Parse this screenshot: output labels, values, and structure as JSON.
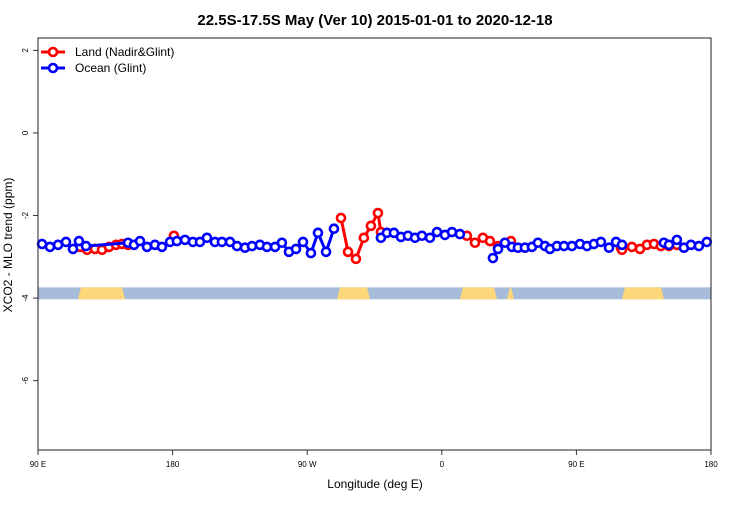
{
  "chart_data": {
    "type": "line",
    "title": "22.5S-17.5S May (Ver 10)   2015-01-01 to 2020-12-18",
    "xlabel": "Longitude (deg E)",
    "ylabel": "XCO2 - MLO trend (ppm)",
    "xlim": [
      90,
      540
    ],
    "ylim": [
      -7.68,
      2.3
    ],
    "x_ticks": [
      {
        "value": 90,
        "label": "90 E"
      },
      {
        "value": 180,
        "label": "180"
      },
      {
        "value": 270,
        "label": "90 W"
      },
      {
        "value": 360,
        "label": "0"
      },
      {
        "value": 450,
        "label": "90 E"
      },
      {
        "value": 540,
        "label": "180"
      }
    ],
    "y_ticks": [
      {
        "value": 2,
        "label": "2"
      },
      {
        "value": 0,
        "label": "0"
      },
      {
        "value": -2,
        "label": "-2"
      },
      {
        "value": -4,
        "label": "-4"
      },
      {
        "value": -6,
        "label": "-6"
      }
    ],
    "grid": false,
    "legend_position": "top-left",
    "series": [
      {
        "name": "Land (Nadir&Glint)",
        "color": "#ff0000",
        "segments": [
          [
            [
              118.1,
              -2.76
            ],
            [
              122.8,
              -2.83
            ],
            [
              128.1,
              -2.81
            ],
            [
              132.8,
              -2.83
            ],
            [
              137.5,
              -2.76
            ],
            [
              142.2,
              -2.71
            ],
            [
              146.2,
              -2.69
            ],
            [
              150.2,
              -2.71
            ]
          ],
          [
            [
              180.9,
              -2.49
            ]
          ],
          [
            [
              292.6,
              -2.06
            ],
            [
              297.3,
              -2.88
            ],
            [
              302.6,
              -3.05
            ],
            [
              307.9,
              -2.54
            ],
            [
              312.6,
              -2.25
            ],
            [
              317.3,
              -1.94
            ],
            [
              319.3,
              -2.4
            ]
          ],
          [
            [
              376.8,
              -2.49
            ],
            [
              382.2,
              -2.66
            ],
            [
              387.5,
              -2.54
            ],
            [
              392.2,
              -2.62
            ],
            [
              397.6,
              -2.74
            ]
          ],
          [
            [
              406.2,
              -2.62
            ],
            [
              410.9,
              -2.78
            ],
            [
              415.6,
              -2.78
            ]
          ],
          [
            [
              479.8,
              -2.78
            ],
            [
              480.5,
              -2.83
            ],
            [
              487.1,
              -2.76
            ],
            [
              492.5,
              -2.81
            ],
            [
              497.2,
              -2.71
            ],
            [
              501.9,
              -2.69
            ],
            [
              506.5,
              -2.74
            ],
            [
              511.9,
              -2.74
            ],
            [
              517.2,
              -2.71
            ],
            [
              521.9,
              -2.78
            ]
          ]
        ]
      },
      {
        "name": "Ocean (Glint)",
        "color": "#0000ff",
        "segments": [
          [
            [
              92.7,
              -2.69
            ],
            [
              98.0,
              -2.76
            ],
            [
              103.4,
              -2.71
            ],
            [
              108.7,
              -2.64
            ],
            [
              113.4,
              -2.81
            ],
            [
              117.4,
              -2.62
            ],
            [
              122.1,
              -2.74
            ],
            [
              150.2,
              -2.66
            ],
            [
              154.2,
              -2.71
            ],
            [
              158.2,
              -2.62
            ],
            [
              162.9,
              -2.76
            ],
            [
              168.2,
              -2.71
            ],
            [
              172.9,
              -2.76
            ],
            [
              178.3,
              -2.64
            ],
            [
              182.9,
              -2.62
            ],
            [
              188.3,
              -2.59
            ],
            [
              193.6,
              -2.64
            ],
            [
              198.3,
              -2.64
            ],
            [
              203.0,
              -2.54
            ],
            [
              208.3,
              -2.64
            ],
            [
              213.0,
              -2.64
            ],
            [
              218.4,
              -2.64
            ],
            [
              223.1,
              -2.74
            ],
            [
              228.4,
              -2.78
            ],
            [
              233.1,
              -2.74
            ],
            [
              238.4,
              -2.71
            ],
            [
              243.1,
              -2.76
            ],
            [
              248.5,
              -2.76
            ],
            [
              253.1,
              -2.66
            ],
            [
              257.8,
              -2.88
            ],
            [
              262.5,
              -2.81
            ],
            [
              267.2,
              -2.64
            ],
            [
              272.5,
              -2.91
            ],
            [
              277.2,
              -2.42
            ],
            [
              282.6,
              -2.88
            ],
            [
              287.9,
              -2.32
            ]
          ],
          [
            [
              319.3,
              -2.54
            ],
            [
              323.3,
              -2.42
            ],
            [
              328.0,
              -2.42
            ],
            [
              332.7,
              -2.52
            ],
            [
              337.4,
              -2.49
            ],
            [
              342.1,
              -2.54
            ],
            [
              346.7,
              -2.49
            ],
            [
              352.1,
              -2.54
            ],
            [
              356.8,
              -2.4
            ],
            [
              362.1,
              -2.47
            ],
            [
              366.8,
              -2.4
            ],
            [
              372.1,
              -2.45
            ]
          ],
          [
            [
              394.2,
              -3.03
            ],
            [
              397.6,
              -2.81
            ],
            [
              402.2,
              -2.66
            ],
            [
              406.9,
              -2.76
            ],
            [
              410.9,
              -2.78
            ],
            [
              415.6,
              -2.78
            ],
            [
              420.3,
              -2.76
            ],
            [
              424.3,
              -2.66
            ],
            [
              429.0,
              -2.74
            ],
            [
              432.3,
              -2.81
            ],
            [
              437.0,
              -2.74
            ],
            [
              441.7,
              -2.74
            ],
            [
              447.0,
              -2.74
            ],
            [
              452.4,
              -2.69
            ],
            [
              457.1,
              -2.74
            ],
            [
              461.7,
              -2.69
            ],
            [
              466.4,
              -2.64
            ],
            [
              471.8,
              -2.78
            ],
            [
              476.5,
              -2.64
            ],
            [
              480.5,
              -2.71
            ]
          ],
          [
            [
              508.5,
              -2.66
            ],
            [
              511.9,
              -2.71
            ],
            [
              517.2,
              -2.59
            ],
            [
              521.9,
              -2.78
            ],
            [
              526.6,
              -2.71
            ],
            [
              531.9,
              -2.74
            ],
            [
              537.2,
              -2.64
            ]
          ]
        ]
      }
    ],
    "surface_mask": {
      "ocean_color": "#a6bcd8",
      "land_color": "#fdd77a",
      "value_range": [
        -3.74,
        -4.03
      ],
      "land_bands": [
        [
          116.7,
          148.2
        ],
        [
          289.9,
          312.0
        ],
        [
          372.1,
          396.9
        ],
        [
          403.6,
          408.3
        ],
        [
          480.5,
          508.6
        ]
      ]
    }
  }
}
